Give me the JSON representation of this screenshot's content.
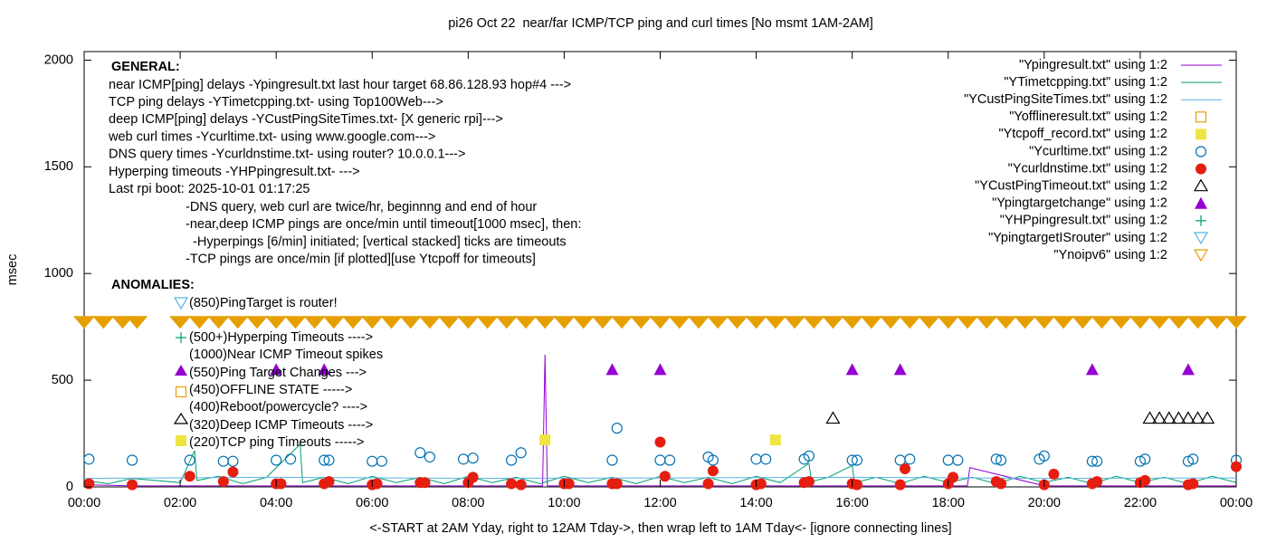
{
  "chart_data": {
    "type": "scatter",
    "title": "pi26 Oct 22  near/far ICMP/TCP ping and curl times [No msmt 1AM-2AM]",
    "x_label": "<-START at 2AM Yday, right to 12AM Tday->, then wrap left to 1AM Tday<- [ignore connecting lines]",
    "y_label": "msec",
    "xlim": [
      0,
      24
    ],
    "ylim": [
      0,
      2040
    ],
    "xticks": [
      {
        "value": 0,
        "label": "00:00"
      },
      {
        "value": 2,
        "label": "02:00"
      },
      {
        "value": 4,
        "label": "04:00"
      },
      {
        "value": 6,
        "label": "06:00"
      },
      {
        "value": 8,
        "label": "08:00"
      },
      {
        "value": 10,
        "label": "10:00"
      },
      {
        "value": 12,
        "label": "12:00"
      },
      {
        "value": 14,
        "label": "14:00"
      },
      {
        "value": 16,
        "label": "16:00"
      },
      {
        "value": 18,
        "label": "18:00"
      },
      {
        "value": 20,
        "label": "20:00"
      },
      {
        "value": 22,
        "label": "22:00"
      },
      {
        "value": 24,
        "label": "00:00"
      }
    ],
    "yticks": [
      0,
      500,
      1000,
      1500,
      2000
    ],
    "grid": false,
    "legend_position": "top-right",
    "annotations": {
      "general_heading": "GENERAL:",
      "general": [
        "near ICMP[ping] delays -Ypingresult.txt last hour target 68.86.128.93 hop#4 --->",
        "TCP ping delays -YTimetcpping.txt- using Top100Web--->",
        "deep ICMP[ping] delays -YCustPingSiteTimes.txt- [X generic rpi]--->",
        "web curl times -Ycurltime.txt- using www.google.com--->",
        "DNS query times -Ycurldnstime.txt- using router? 10.0.0.1--->",
        "Hyperping timeouts -YHPpingresult.txt- --->",
        "Last rpi boot: 2025-10-01 01:17:25"
      ],
      "notes": [
        "-DNS query, web curl are twice/hr, beginnng and end of hour",
        "-near,deep ICMP pings are once/min until timeout[1000 msec], then:",
        "  -Hyperpings [6/min] initiated; [vertical stacked] ticks are timeouts",
        "-TCP pings are once/min [if plotted][use Ytcpoff for timeouts]"
      ],
      "anomalies_heading": "ANOMALIES:",
      "anomalies": [
        "(850)PingTarget is router!",
        "(500+)Hyperping Timeouts ---->",
        "(1000)Near ICMP Timeout spikes",
        "(550)Ping Target Changes --->",
        "(450)OFFLINE STATE ----->",
        "(400)Reboot/powercycle? ---->",
        "(320)Deep ICMP Timeouts ---->",
        "(220)TCP ping Timeouts ----->"
      ]
    },
    "series": [
      {
        "name": "\"Ypingresult.txt\" using 1:2",
        "color": "#9400d3",
        "style": "line",
        "x": [
          0,
          1,
          2,
          4,
          6,
          8,
          9.55,
          9.6,
          9.65,
          12,
          16,
          18.4,
          18.45,
          20,
          22,
          24
        ],
        "values": [
          10,
          5,
          5,
          5,
          5,
          5,
          5,
          620,
          5,
          5,
          5,
          5,
          90,
          5,
          5,
          5
        ]
      },
      {
        "name": "\"YTimetcpping.txt\" using 1:2",
        "color": "#009e73",
        "style": "line",
        "x": [
          0,
          0.5,
          1,
          2,
          2.3,
          2.35,
          2.8,
          3.3,
          3.8,
          4.5,
          4.55,
          5,
          5.5,
          6,
          6.5,
          7,
          7.5,
          8,
          8.5,
          9,
          9.5,
          10,
          10.5,
          11,
          11.5,
          12,
          12.5,
          13,
          13.5,
          14,
          14.5,
          15.1,
          15.15,
          15.5,
          16,
          16.05,
          16.5,
          17,
          17.5,
          18,
          18.5,
          19,
          19.5,
          20,
          20.5,
          21,
          21.5,
          22,
          22.5,
          23,
          23.5,
          24
        ],
        "values": [
          30,
          15,
          40,
          20,
          170,
          30,
          50,
          15,
          45,
          200,
          20,
          45,
          15,
          50,
          20,
          45,
          15,
          50,
          20,
          45,
          15,
          50,
          20,
          45,
          15,
          50,
          20,
          45,
          15,
          50,
          20,
          110,
          25,
          45,
          100,
          20,
          45,
          15,
          50,
          20,
          45,
          15,
          50,
          20,
          45,
          15,
          50,
          20,
          45,
          15,
          50,
          20
        ]
      },
      {
        "name": "\"YCustPingSiteTimes.txt\" using 1:2",
        "color": "#56b4e9",
        "style": "line",
        "x": [
          0,
          4,
          8,
          12,
          16,
          20,
          24
        ],
        "values": [
          40,
          45,
          40,
          42,
          45,
          40,
          42
        ]
      },
      {
        "name": "\"Yofflineresult.txt\" using 1:2",
        "color": "#e69f00",
        "style": "square-open",
        "x": [],
        "values": []
      },
      {
        "name": "\"Ytcpoff_record.txt\" using 1:2",
        "color": "#f0e442",
        "style": "square",
        "x": [
          9.6,
          14.4
        ],
        "values": [
          220,
          220
        ]
      },
      {
        "name": "\"Ycurltime.txt\" using 1:2",
        "color": "#0072b2",
        "style": "circle-open",
        "x": [
          0.1,
          1.0,
          2.2,
          2.9,
          3.1,
          4.0,
          4.3,
          5.0,
          5.1,
          6.0,
          6.2,
          7.0,
          7.2,
          7.9,
          8.1,
          8.9,
          9.1,
          11.0,
          11.1,
          12.0,
          12.2,
          13.0,
          13.1,
          14.0,
          14.2,
          15.0,
          15.1,
          16.0,
          16.1,
          17.0,
          17.2,
          18.0,
          18.2,
          19.0,
          19.1,
          19.9,
          20.0,
          21.0,
          21.1,
          22.0,
          22.1,
          23.0,
          23.1,
          24.0
        ],
        "values": [
          130,
          125,
          125,
          120,
          120,
          125,
          130,
          125,
          125,
          120,
          120,
          160,
          140,
          130,
          135,
          125,
          160,
          125,
          275,
          125,
          125,
          140,
          125,
          130,
          130,
          130,
          145,
          125,
          125,
          125,
          130,
          125,
          125,
          130,
          125,
          130,
          145,
          120,
          120,
          120,
          130,
          120,
          130,
          125
        ]
      },
      {
        "name": "\"Ycurldnstime.txt\" using 1:2",
        "color": "#e51e10",
        "style": "circle",
        "x": [
          0.1,
          1.0,
          2.2,
          2.9,
          3.1,
          4.0,
          4.1,
          5.0,
          5.1,
          6.0,
          6.1,
          7.0,
          7.1,
          8.0,
          8.1,
          8.9,
          9.1,
          10.0,
          10.1,
          11.0,
          11.1,
          12.0,
          12.1,
          13.0,
          13.1,
          14.0,
          14.1,
          15.0,
          15.1,
          16.0,
          16.1,
          17.0,
          17.1,
          18.0,
          18.1,
          19.0,
          19.1,
          20.0,
          20.2,
          21.0,
          21.1,
          22.0,
          22.1,
          23.0,
          23.1,
          24.0
        ],
        "values": [
          15,
          10,
          50,
          25,
          70,
          15,
          15,
          15,
          25,
          10,
          15,
          20,
          20,
          20,
          45,
          15,
          10,
          15,
          15,
          15,
          15,
          210,
          50,
          15,
          75,
          10,
          15,
          20,
          25,
          15,
          10,
          10,
          85,
          15,
          45,
          25,
          15,
          10,
          60,
          15,
          25,
          20,
          30,
          10,
          15,
          95
        ]
      },
      {
        "name": "\"YCustPingTimeout.txt\" using 1:2",
        "color": "#000000",
        "style": "triangle-open",
        "x": [
          15.6,
          22.2,
          22.4,
          22.6,
          22.8,
          23.0,
          23.2,
          23.4
        ],
        "values": [
          320,
          320,
          320,
          320,
          320,
          320,
          320,
          320
        ]
      },
      {
        "name": "\"Ypingtargetchange\" using 1:2",
        "color": "#9400d3",
        "style": "triangle",
        "x": [
          4.0,
          5.0,
          11.0,
          12.0,
          16.0,
          17.0,
          21.0,
          23.0
        ],
        "values": [
          550,
          550,
          550,
          550,
          550,
          550,
          550,
          550
        ]
      },
      {
        "name": "\"YHPpingresult.txt\" using 1:2",
        "color": "#009e73",
        "style": "plus",
        "x": [],
        "values": []
      },
      {
        "name": "\"YpingtargetISrouter\" using 1:2",
        "color": "#56b4e9",
        "style": "triangle-down-open",
        "x": [],
        "values": []
      },
      {
        "name": "\"Ynoipv6\" using 1:2",
        "color": "#e69f00",
        "style": "triangle-down-band",
        "x": [
          0,
          0.4,
          0.8,
          1.1,
          2,
          2.4,
          2.8,
          3.2,
          3.6,
          4,
          4.4,
          4.8,
          5.2,
          5.6,
          6,
          6.4,
          6.8,
          7.2,
          7.6,
          8,
          8.4,
          8.8,
          9.2,
          9.6,
          10,
          10.4,
          10.8,
          11.2,
          11.6,
          12,
          12.4,
          12.8,
          13.2,
          13.6,
          14,
          14.4,
          14.8,
          15.2,
          15.6,
          16,
          16.4,
          16.8,
          17.2,
          17.6,
          18,
          18.4,
          18.8,
          19.2,
          19.6,
          20,
          20.4,
          20.8,
          21.2,
          21.6,
          22,
          22.4,
          22.8,
          23.2,
          23.6,
          24
        ],
        "values": [
          775,
          775,
          775,
          775,
          775,
          775,
          775,
          775,
          775,
          775,
          775,
          775,
          775,
          775,
          775,
          775,
          775,
          775,
          775,
          775,
          775,
          775,
          775,
          775,
          775,
          775,
          775,
          775,
          775,
          775,
          775,
          775,
          775,
          775,
          775,
          775,
          775,
          775,
          775,
          775,
          775,
          775,
          775,
          775,
          775,
          775,
          775,
          775,
          775,
          775,
          775,
          775,
          775,
          775,
          775,
          775,
          775,
          775,
          775,
          775
        ]
      }
    ]
  }
}
